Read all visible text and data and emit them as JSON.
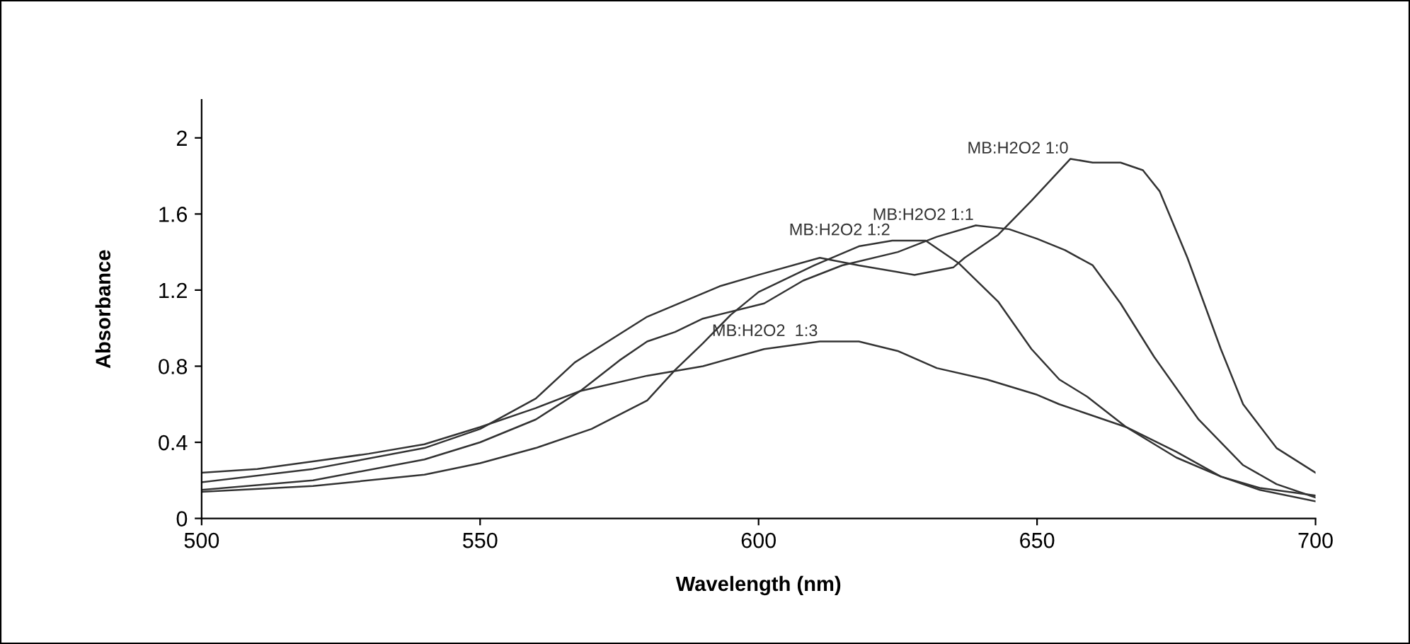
{
  "chart_data": {
    "type": "line",
    "xlabel": "Wavelength (nm)",
    "ylabel": "Absorbance",
    "xlim": [
      500,
      700
    ],
    "xticks": [
      500,
      550,
      600,
      650,
      700
    ],
    "ylim": [
      0,
      2.2
    ],
    "yticks": [
      0,
      0.4,
      0.8,
      1.2,
      1.6,
      2
    ],
    "grid": false,
    "legend": false,
    "marker": "none",
    "line_style": "solid",
    "series": [
      {
        "name": "MB:H2O2 1:0",
        "color": "#333333",
        "x": [
          500,
          520,
          540,
          550,
          560,
          567,
          580,
          593,
          600,
          611,
          618,
          628,
          635,
          637,
          643,
          649,
          656,
          660,
          665,
          669,
          672,
          677,
          683,
          687,
          693,
          700
        ],
        "values": [
          0.19,
          0.26,
          0.37,
          0.47,
          0.63,
          0.82,
          1.06,
          1.22,
          1.28,
          1.37,
          1.33,
          1.28,
          1.32,
          1.37,
          1.49,
          1.67,
          1.89,
          1.87,
          1.87,
          1.83,
          1.72,
          1.37,
          0.89,
          0.6,
          0.37,
          0.24
        ]
      },
      {
        "name": "MB:H2O2 1:1",
        "color": "#333333",
        "x": [
          500,
          520,
          540,
          550,
          560,
          568,
          575,
          580,
          585,
          590,
          601,
          608,
          615,
          625,
          632,
          639,
          645,
          650,
          655,
          660,
          665,
          671,
          679,
          687,
          693,
          700
        ],
        "values": [
          0.15,
          0.2,
          0.31,
          0.4,
          0.52,
          0.67,
          0.83,
          0.93,
          0.98,
          1.05,
          1.13,
          1.25,
          1.33,
          1.4,
          1.48,
          1.54,
          1.52,
          1.47,
          1.41,
          1.33,
          1.13,
          0.85,
          0.52,
          0.28,
          0.18,
          0.11
        ]
      },
      {
        "name": "MB:H2O2 1:2",
        "color": "#333333",
        "x": [
          500,
          520,
          540,
          550,
          560,
          570,
          580,
          585,
          590,
          595,
          600,
          610,
          618,
          624,
          630,
          636,
          643,
          649,
          654,
          659,
          666,
          675,
          683,
          690,
          700
        ],
        "values": [
          0.14,
          0.17,
          0.23,
          0.29,
          0.37,
          0.47,
          0.62,
          0.78,
          0.92,
          1.07,
          1.19,
          1.33,
          1.43,
          1.46,
          1.46,
          1.34,
          1.14,
          0.89,
          0.73,
          0.64,
          0.48,
          0.32,
          0.22,
          0.15,
          0.09
        ]
      },
      {
        "name": "MB:H2O2  1:3",
        "color": "#333333",
        "x": [
          500,
          510,
          520,
          530,
          540,
          550,
          560,
          568,
          580,
          590,
          601,
          611,
          618,
          625,
          632,
          641,
          650,
          654,
          666,
          675,
          683,
          690,
          700
        ],
        "values": [
          0.24,
          0.26,
          0.3,
          0.34,
          0.39,
          0.48,
          0.58,
          0.67,
          0.75,
          0.8,
          0.89,
          0.93,
          0.93,
          0.88,
          0.79,
          0.73,
          0.65,
          0.6,
          0.48,
          0.35,
          0.22,
          0.16,
          0.12
        ]
      }
    ]
  }
}
